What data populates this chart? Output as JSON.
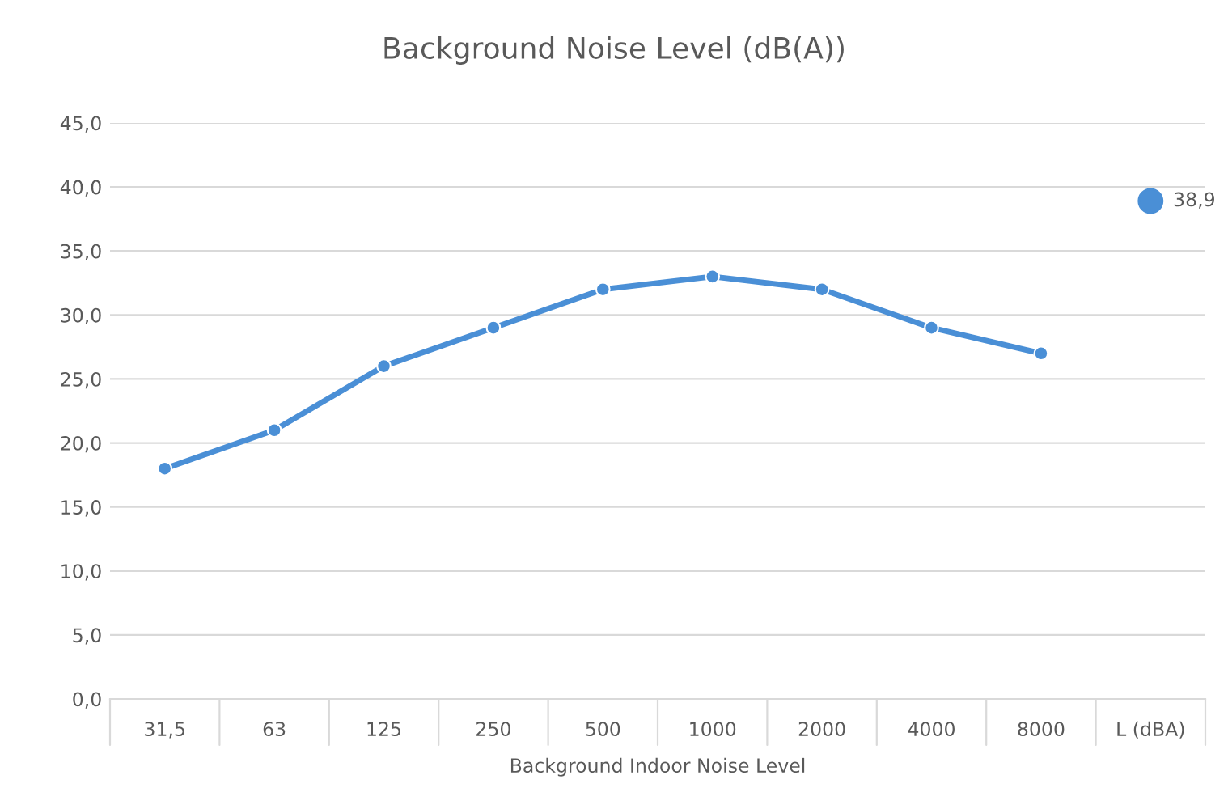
{
  "chart_data": {
    "type": "line",
    "title": "Background Noise Level (dB(A))",
    "xlabel": "Background Indoor Noise Level",
    "categories": [
      "31,5",
      "63",
      "125",
      "250",
      "500",
      "1000",
      "2000",
      "4000",
      "8000",
      "L (dBA)"
    ],
    "series": [
      {
        "color": "#4a8fd6",
        "values": [
          18,
          21,
          26,
          29,
          32,
          33,
          32,
          29,
          27,
          null
        ],
        "marker": "circle"
      },
      {
        "type": "scatter",
        "color": "#4a8fd6",
        "values": [
          null,
          null,
          null,
          null,
          null,
          null,
          null,
          null,
          null,
          38.9
        ],
        "value_labels": [
          null,
          null,
          null,
          null,
          null,
          null,
          null,
          null,
          null,
          "38,9"
        ],
        "marker": "circle"
      }
    ],
    "ylim": [
      0,
      45
    ],
    "yticks": [
      {
        "value": 0,
        "label": "0,0"
      },
      {
        "value": 5,
        "label": "5,0"
      },
      {
        "value": 10,
        "label": "10,0"
      },
      {
        "value": 15,
        "label": "15,0"
      },
      {
        "value": 20,
        "label": "20,0"
      },
      {
        "value": 25,
        "label": "25,0"
      },
      {
        "value": 30,
        "label": "30,0"
      },
      {
        "value": 35,
        "label": "35,0"
      },
      {
        "value": 40,
        "label": "40,0"
      },
      {
        "value": 45,
        "label": "45,0"
      }
    ],
    "grid": "y",
    "legend": false
  }
}
